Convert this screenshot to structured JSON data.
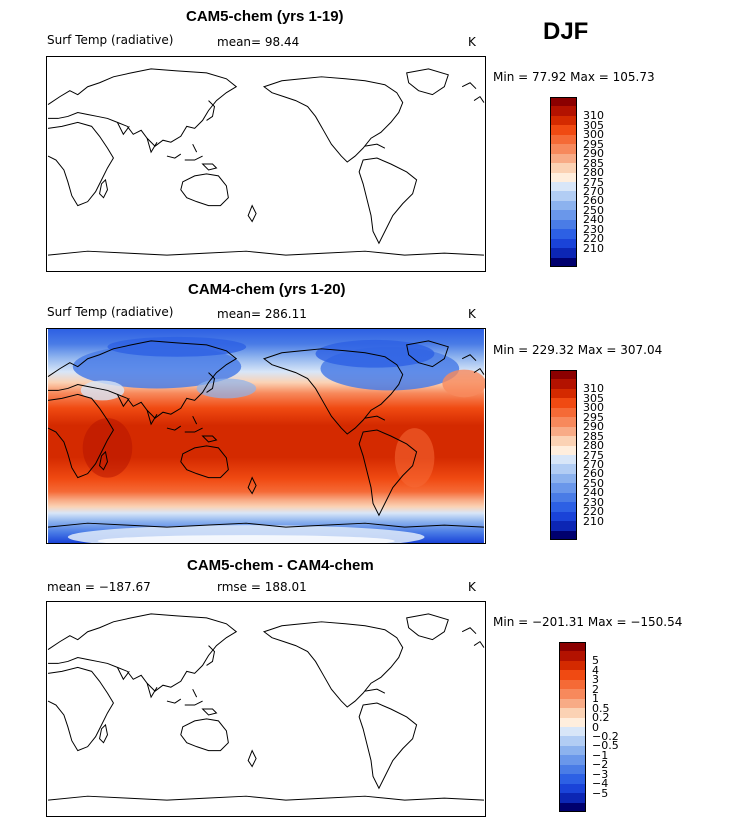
{
  "season": "DJF",
  "units": "K",
  "panel_top": {
    "title": "CAM5-chem (yrs 1-19)",
    "variable": "Surf Temp (radiative)",
    "mean_label": "mean=  98.44",
    "units": "K",
    "minmax": "Min =  77.92 Max = 105.73"
  },
  "panel_mid": {
    "title": "CAM4-chem (yrs 1-20)",
    "variable": "Surf Temp (radiative)",
    "mean_label": "mean= 286.11",
    "units": "K",
    "minmax": "Min = 229.32 Max = 307.04"
  },
  "panel_bot": {
    "title": "CAM5-chem - CAM4-chem",
    "mean_label": "mean = −187.67",
    "rmse_label": "rmse = 188.01",
    "units": "K",
    "minmax": "Min = −201.31 Max = −150.54"
  },
  "colorbar_abs": {
    "labels": [
      "310",
      "305",
      "300",
      "295",
      "290",
      "285",
      "280",
      "275",
      "270",
      "260",
      "250",
      "240",
      "230",
      "220",
      "210"
    ],
    "colors": [
      "#8b0000",
      "#b31200",
      "#d42a00",
      "#f04a12",
      "#f56a36",
      "#f7895c",
      "#f8ab86",
      "#fbd2b4",
      "#ffeedd",
      "#d8e6f8",
      "#b2cdf4",
      "#8cb2ee",
      "#6a97ea",
      "#4a7ce6",
      "#2d60e4",
      "#1a43d8",
      "#0c26b4",
      "#00006e"
    ]
  },
  "colorbar_diff": {
    "labels": [
      "5",
      "4",
      "3",
      "2",
      "1",
      "0.5",
      "0.2",
      "0",
      "−0.2",
      "−0.5",
      "−1",
      "−2",
      "−3",
      "−4",
      "−5"
    ],
    "colors": [
      "#8b0000",
      "#b31200",
      "#d42a00",
      "#f04a12",
      "#f56a36",
      "#f7895c",
      "#f8ab86",
      "#fbd2b4",
      "#ffeedd",
      "#d8e6f8",
      "#b2cdf4",
      "#8cb2ee",
      "#6a97ea",
      "#4a7ce6",
      "#2d60e4",
      "#1a43d8",
      "#0c26b4",
      "#00006e"
    ]
  },
  "chart_data": [
    {
      "type": "heatmap",
      "title": "CAM5-chem (yrs 1-19)",
      "subtitle": "Surf Temp (radiative)",
      "mean": 98.44,
      "min": 77.92,
      "max": 105.73,
      "units": "K",
      "levels": [
        210,
        220,
        230,
        240,
        250,
        260,
        270,
        275,
        280,
        285,
        290,
        295,
        300,
        305,
        310
      ]
    },
    {
      "type": "heatmap",
      "title": "CAM4-chem (yrs 1-20)",
      "subtitle": "Surf Temp (radiative)",
      "mean": 286.11,
      "min": 229.32,
      "max": 307.04,
      "units": "K",
      "levels": [
        210,
        220,
        230,
        240,
        250,
        260,
        270,
        275,
        280,
        285,
        290,
        295,
        300,
        305,
        310
      ]
    },
    {
      "type": "heatmap",
      "title": "CAM5-chem - CAM4-chem",
      "mean": -187.67,
      "rmse": 188.01,
      "min": -201.31,
      "max": -150.54,
      "units": "K",
      "levels": [
        -5,
        -4,
        -3,
        -2,
        -1,
        -0.5,
        -0.2,
        0,
        0.2,
        0.5,
        1,
        2,
        3,
        4,
        5
      ]
    }
  ]
}
